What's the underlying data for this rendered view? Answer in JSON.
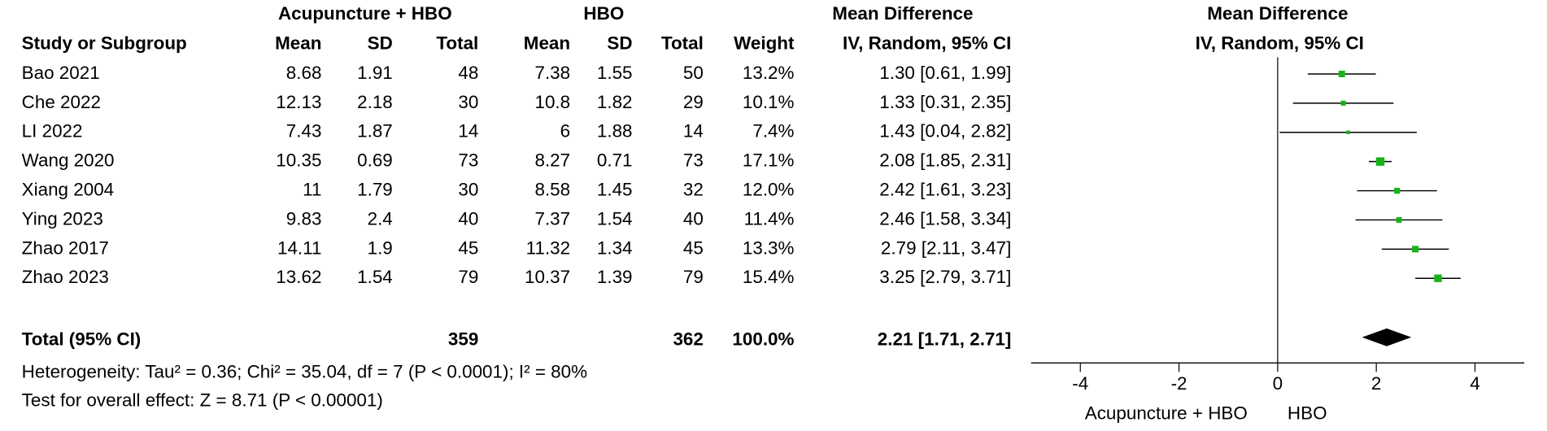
{
  "table": {
    "group_headers": [
      "Acupuncture + HBO",
      "HBO",
      "Mean Difference"
    ],
    "columns": [
      "Study or Subgroup",
      "Mean",
      "SD",
      "Total",
      "Mean",
      "SD",
      "Total",
      "Weight",
      "IV, Random, 95% CI"
    ],
    "rows": [
      [
        "Bao 2021",
        8.68,
        1.91,
        48,
        7.38,
        1.55,
        50,
        "13.2%",
        "1.30 [0.61, 1.99]"
      ],
      [
        "Che 2022",
        12.13,
        2.18,
        30,
        10.8,
        1.82,
        29,
        "10.1%",
        "1.33 [0.31, 2.35]"
      ],
      [
        "LI 2022",
        7.43,
        1.87,
        14,
        6,
        1.88,
        14,
        "7.4%",
        "1.43 [0.04, 2.82]"
      ],
      [
        "Wang 2020",
        10.35,
        0.69,
        73,
        8.27,
        0.71,
        73,
        "17.1%",
        "2.08 [1.85, 2.31]"
      ],
      [
        "Xiang 2004",
        11,
        1.79,
        30,
        8.58,
        1.45,
        32,
        "12.0%",
        "2.42 [1.61, 3.23]"
      ],
      [
        "Ying 2023",
        9.83,
        2.4,
        40,
        7.37,
        1.54,
        40,
        "11.4%",
        "2.46 [1.58, 3.34]"
      ],
      [
        "Zhao 2017",
        14.11,
        1.9,
        45,
        11.32,
        1.34,
        45,
        "13.3%",
        "2.79 [2.11, 3.47]"
      ],
      [
        "Zhao 2023",
        13.62,
        1.54,
        79,
        10.37,
        1.39,
        79,
        "15.4%",
        "3.25 [2.79, 3.71]"
      ]
    ],
    "total": [
      "Total (95% CI)",
      359,
      362,
      "100.0%",
      "2.21 [1.71, 2.71]"
    ],
    "heterogeneity": "Heterogeneity: Tau² = 0.36; Chi² = 35.04, df = 7 (P < 0.0001); I² = 80%",
    "overall_effect": "Test for overall effect: Z = 8.71 (P < 0.00001)"
  },
  "chart_data": {
    "type": "forest",
    "title": "Mean Difference",
    "subtitle": "IV, Random, 95% CI",
    "values": [
      1.3,
      1.33,
      1.43,
      2.08,
      2.42,
      2.46,
      2.79,
      3.25
    ],
    "lower": [
      0.61,
      0.31,
      0.04,
      1.85,
      1.61,
      1.58,
      2.11,
      2.79
    ],
    "upper": [
      1.99,
      2.35,
      2.82,
      2.31,
      3.23,
      3.34,
      3.47,
      3.71
    ],
    "weights": [
      13.2,
      10.1,
      7.4,
      17.1,
      12.0,
      11.4,
      13.3,
      15.4
    ],
    "total": {
      "value": 2.21,
      "lower": 1.71,
      "upper": 2.71
    },
    "xlim": [
      -5,
      5
    ],
    "xticks": [
      -4,
      -2,
      0,
      2,
      4
    ],
    "x_label_left": "Acupuncture + HBO",
    "x_label_right": "HBO",
    "color": "#19b319"
  }
}
